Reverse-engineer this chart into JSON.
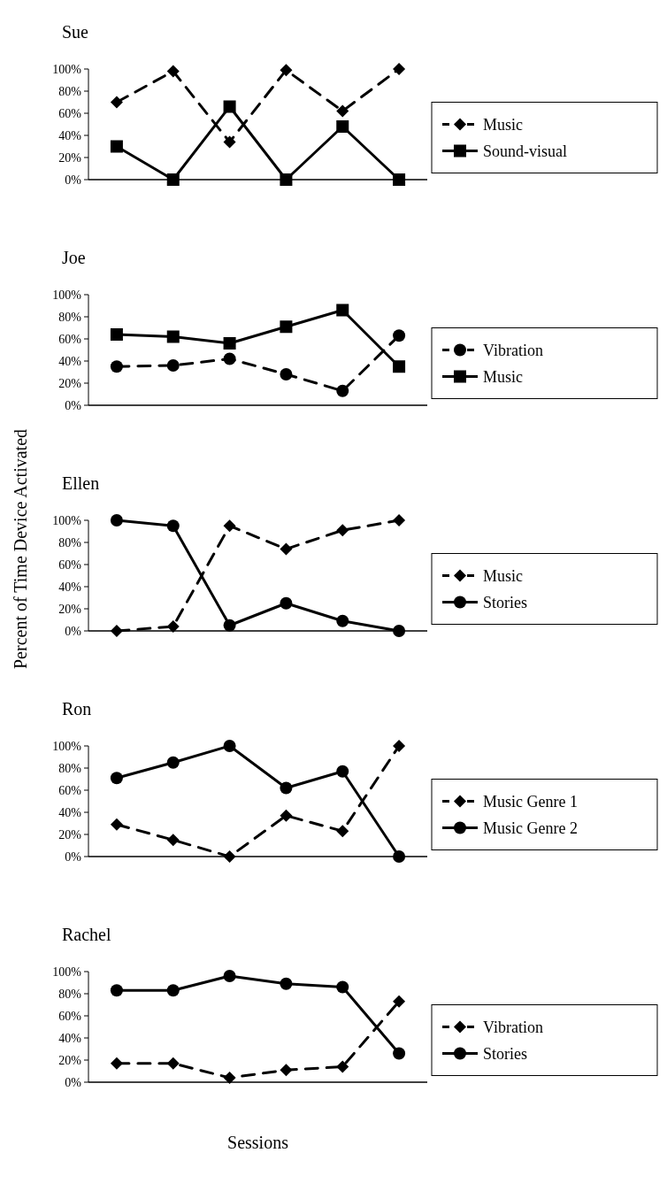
{
  "chart_data": [
    {
      "type": "line",
      "title": "Sue",
      "categories": [
        null,
        null,
        null,
        null,
        null,
        null
      ],
      "ylim": [
        0,
        100
      ],
      "yticks": [
        {
          "value": 0,
          "label": "0%"
        },
        {
          "value": 20,
          "label": "20%"
        },
        {
          "value": 40,
          "label": "40%"
        },
        {
          "value": 60,
          "label": "60%"
        },
        {
          "value": 80,
          "label": "80%"
        },
        {
          "value": 100,
          "label": "100%"
        }
      ],
      "legend": "right",
      "grid": false,
      "series": [
        {
          "name": "Music",
          "color": "#000000",
          "marker": "diamond",
          "line_style": "dashed",
          "values": [
            70,
            98,
            34,
            99,
            62,
            100
          ]
        },
        {
          "name": "Sound-visual",
          "color": "#000000",
          "marker": "square",
          "line_style": "solid",
          "values": [
            30,
            0,
            66,
            0,
            48,
            0
          ]
        }
      ]
    },
    {
      "type": "line",
      "title": "Joe",
      "categories": [
        null,
        null,
        null,
        null,
        null,
        null
      ],
      "ylim": [
        0,
        100
      ],
      "yticks": [
        {
          "value": 0,
          "label": "0%"
        },
        {
          "value": 20,
          "label": "20%"
        },
        {
          "value": 40,
          "label": "40%"
        },
        {
          "value": 60,
          "label": "60%"
        },
        {
          "value": 80,
          "label": "80%"
        },
        {
          "value": 100,
          "label": "100%"
        }
      ],
      "legend": "right",
      "grid": false,
      "series": [
        {
          "name": "Vibration",
          "color": "#000000",
          "marker": "circle",
          "line_style": "dashed",
          "values": [
            35,
            36,
            42,
            28,
            13,
            63
          ]
        },
        {
          "name": "Music",
          "color": "#000000",
          "marker": "square",
          "line_style": "solid",
          "values": [
            64,
            62,
            56,
            71,
            86,
            35
          ]
        }
      ]
    },
    {
      "type": "line",
      "title": "Ellen",
      "ylabel": "Percent of Time Device Activated",
      "categories": [
        null,
        null,
        null,
        null,
        null,
        null
      ],
      "ylim": [
        0,
        100
      ],
      "yticks": [
        {
          "value": 0,
          "label": "0%"
        },
        {
          "value": 20,
          "label": "20%"
        },
        {
          "value": 40,
          "label": "40%"
        },
        {
          "value": 60,
          "label": "60%"
        },
        {
          "value": 80,
          "label": "80%"
        },
        {
          "value": 100,
          "label": "100%"
        }
      ],
      "legend": "right",
      "grid": false,
      "series": [
        {
          "name": "Music",
          "color": "#000000",
          "marker": "diamond",
          "line_style": "dashed",
          "values": [
            0,
            4,
            95,
            74,
            91,
            100
          ]
        },
        {
          "name": "Stories",
          "color": "#000000",
          "marker": "circle",
          "line_style": "solid",
          "values": [
            100,
            95,
            5,
            25,
            9,
            0
          ]
        }
      ]
    },
    {
      "type": "line",
      "title": "Ron",
      "categories": [
        null,
        null,
        null,
        null,
        null,
        null
      ],
      "ylim": [
        0,
        100
      ],
      "yticks": [
        {
          "value": 0,
          "label": "0%"
        },
        {
          "value": 20,
          "label": "20%"
        },
        {
          "value": 40,
          "label": "40%"
        },
        {
          "value": 60,
          "label": "60%"
        },
        {
          "value": 80,
          "label": "80%"
        },
        {
          "value": 100,
          "label": "100%"
        }
      ],
      "legend": "right",
      "grid": false,
      "series": [
        {
          "name": "Music Genre 1",
          "color": "#000000",
          "marker": "diamond",
          "line_style": "dashed",
          "values": [
            29,
            15,
            0,
            37,
            23,
            100
          ]
        },
        {
          "name": "Music Genre 2",
          "color": "#000000",
          "marker": "circle",
          "line_style": "solid",
          "values": [
            71,
            85,
            100,
            62,
            77,
            0
          ]
        }
      ]
    },
    {
      "type": "line",
      "title": "Rachel",
      "xlabel": "Sessions",
      "categories": [
        null,
        null,
        null,
        null,
        null,
        null
      ],
      "ylim": [
        0,
        100
      ],
      "yticks": [
        {
          "value": 0,
          "label": "0%"
        },
        {
          "value": 20,
          "label": "20%"
        },
        {
          "value": 40,
          "label": "40%"
        },
        {
          "value": 60,
          "label": "60%"
        },
        {
          "value": 80,
          "label": "80%"
        },
        {
          "value": 100,
          "label": "100%"
        }
      ],
      "legend": "right",
      "grid": false,
      "series": [
        {
          "name": "Vibration",
          "color": "#000000",
          "marker": "diamond",
          "line_style": "dashed",
          "values": [
            17,
            17,
            4,
            11,
            14,
            73
          ]
        },
        {
          "name": "Stories",
          "color": "#000000",
          "marker": "circle",
          "line_style": "solid",
          "values": [
            83,
            83,
            96,
            89,
            86,
            26
          ]
        }
      ]
    }
  ]
}
